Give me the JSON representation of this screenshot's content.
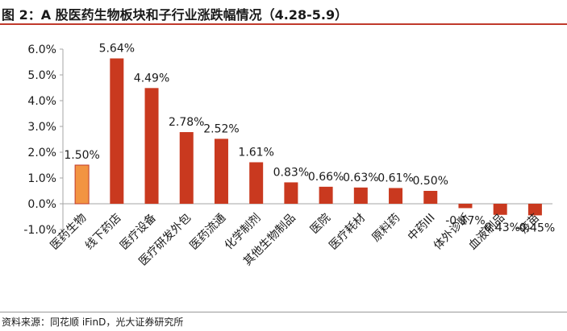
{
  "header": {
    "title": "图 2：A 股医药生物板块和子行业涨跌幅情况（4.28-5.9）"
  },
  "footer": {
    "source": "资料来源：同花顺 iFinD，光大证券研究所"
  },
  "chart_data": {
    "type": "bar",
    "categories": [
      "医药生物",
      "线下药店",
      "医疗设备",
      "医疗研发外包",
      "医药流通",
      "化学制剂",
      "其他生物制品",
      "医院",
      "医疗耗材",
      "原料药",
      "中药III",
      "体外诊断",
      "血液制品",
      "疫苗"
    ],
    "values": [
      1.5,
      5.64,
      4.49,
      2.78,
      2.52,
      1.61,
      0.83,
      0.66,
      0.63,
      0.61,
      0.5,
      -0.17,
      -0.43,
      -0.45
    ],
    "data_labels": [
      "1.50%",
      "5.64%",
      "4.49%",
      "2.78%",
      "2.52%",
      "1.61%",
      "0.83%",
      "0.66%",
      "0.63%",
      "0.61%",
      "0.50%",
      "-0.17%",
      "-0.43%",
      "-0.45%"
    ],
    "yticks": [
      6.0,
      5.0,
      4.0,
      3.0,
      2.0,
      1.0,
      0.0,
      -1.0
    ],
    "ytick_labels": [
      "6.0%",
      "5.0%",
      "4.0%",
      "3.0%",
      "2.0%",
      "1.0%",
      "0.0%",
      "-1.0%"
    ],
    "ylim": [
      -1.0,
      6.0
    ],
    "xlabel": "",
    "ylabel": "",
    "grid": false,
    "colors": {
      "highlight": "#f29442",
      "highlight_edge": "#c0392b",
      "bar": "#c9391f",
      "axis": "#a6a6a6"
    }
  }
}
